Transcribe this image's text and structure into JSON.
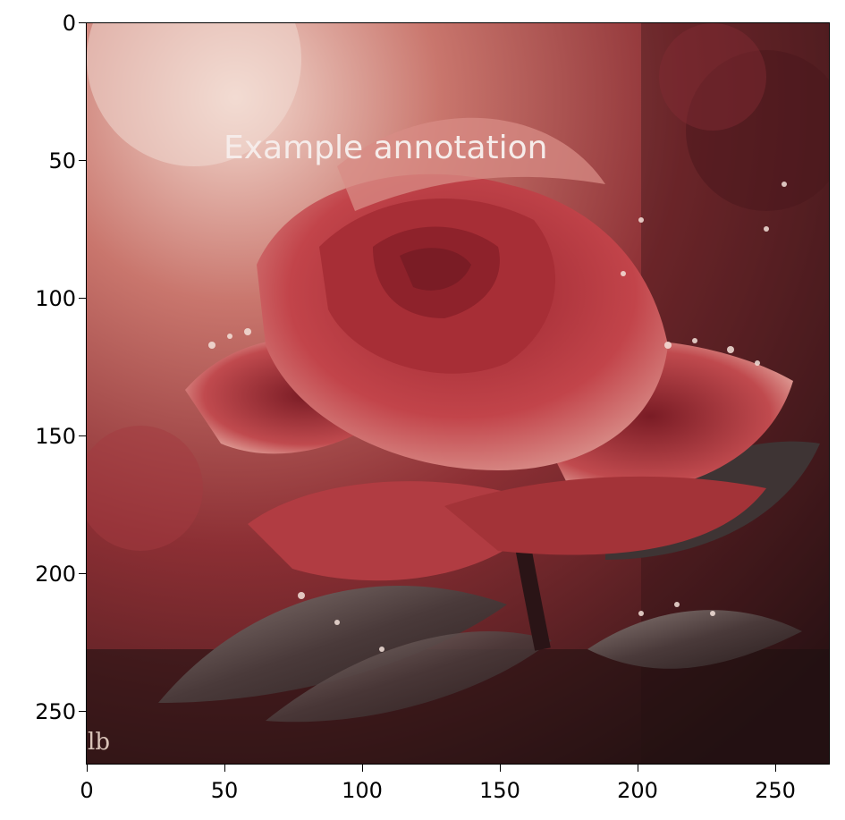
{
  "image": {
    "description_icon": "rose-with-dew-photo",
    "annotation": "Example annotation",
    "corner_mark": "lb"
  },
  "axes": {
    "x_ticks": [
      "0",
      "50",
      "100",
      "150",
      "200",
      "250"
    ],
    "y_ticks": [
      "0",
      "50",
      "100",
      "150",
      "200",
      "250"
    ],
    "x_range": [
      0,
      270
    ],
    "y_range": [
      0,
      270
    ],
    "y_inverted": true
  },
  "colors": {
    "rose": "#b8323a",
    "rose_dark": "#6e1a22",
    "background_dark": "#2a1416",
    "highlight": "#f2d6cf"
  }
}
